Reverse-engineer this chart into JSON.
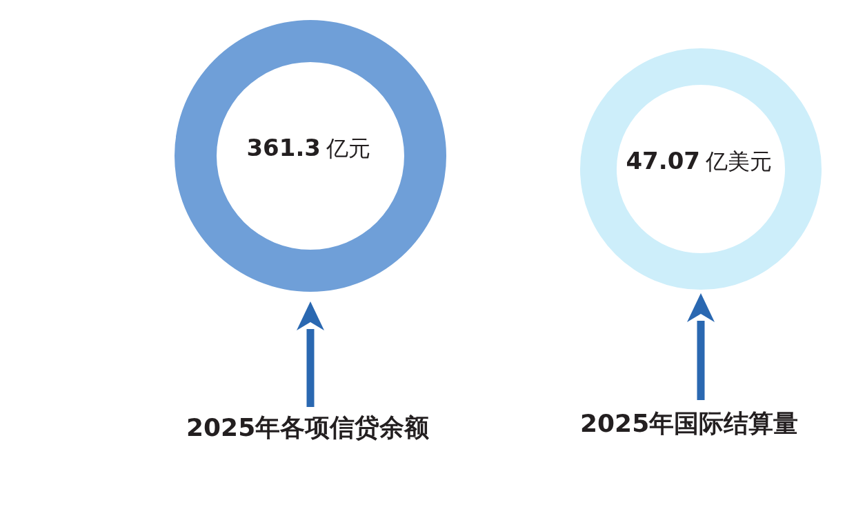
{
  "chart_data": [
    {
      "type": "other",
      "title": "2025年各项信贷余额",
      "categories": [
        null
      ],
      "values": [
        361.3
      ],
      "colors": [
        "#6f9fd8"
      ],
      "data_labels": true,
      "annotations": [
        "亿元"
      ]
    },
    {
      "type": "other",
      "title": "2025年国际结算量",
      "categories": [
        null
      ],
      "values": [
        47.07
      ],
      "colors": [
        "#cdeefa"
      ],
      "data_labels": true,
      "annotations": [
        "亿美元"
      ]
    }
  ]
}
